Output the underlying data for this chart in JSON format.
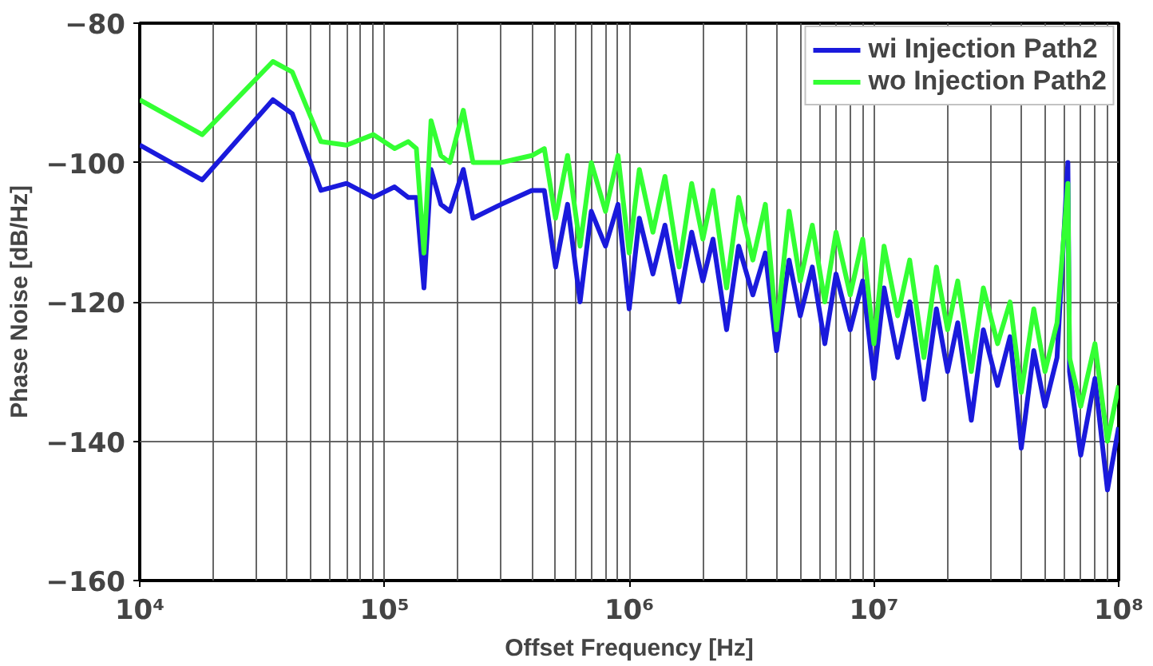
{
  "chart_data": {
    "type": "line",
    "xlabel": "Offset Frequency [Hz]",
    "ylabel": "Phase Noise [dB/Hz]",
    "log": "x",
    "grid": true,
    "legend": "top right",
    "xlim": [
      10000,
      100000000
    ],
    "ylim": [
      -160,
      -80
    ],
    "xticks": [
      {
        "value": 10000,
        "label": "10⁴"
      },
      {
        "value": 100000,
        "label": "10⁵"
      },
      {
        "value": 1000000,
        "label": "10⁶"
      },
      {
        "value": 10000000,
        "label": "10⁷"
      },
      {
        "value": 100000000,
        "label": "10⁸"
      }
    ],
    "yticks": [
      -160,
      -140,
      -120,
      -100,
      -80
    ],
    "series": [
      {
        "name": "wi Injection Path2",
        "color": "#1a1adc",
        "x": [
          10000,
          18000,
          35000,
          42000,
          55000,
          70000,
          90000,
          110000,
          125000,
          135000,
          145000,
          155000,
          170000,
          185000,
          210000,
          230000,
          300000,
          400000,
          450000,
          500000,
          560000,
          630000,
          700000,
          800000,
          900000,
          1000000,
          1100000,
          1250000,
          1400000,
          1600000,
          1800000,
          2000000,
          2200000,
          2500000,
          2800000,
          3200000,
          3600000,
          4000000,
          4500000,
          5000000,
          5600000,
          6300000,
          7000000,
          8000000,
          9000000,
          10000000,
          11000000,
          12500000,
          14000000,
          16000000,
          18000000,
          20000000,
          22000000,
          25000000,
          28000000,
          32000000,
          36000000,
          40000000,
          45000000,
          50000000,
          56000000,
          62000000,
          63000000,
          70000000,
          80000000,
          90000000,
          100000000
        ],
        "values": [
          -97.5,
          -102.5,
          -91,
          -93,
          -104,
          -103,
          -105,
          -103.5,
          -105,
          -105,
          -118,
          -101,
          -106,
          -107,
          -101,
          -108,
          -106,
          -104,
          -104,
          -115,
          -106,
          -120,
          -107,
          -112,
          -106,
          -121,
          -108,
          -116,
          -109,
          -120,
          -110,
          -117,
          -111,
          -124,
          -112,
          -119,
          -113,
          -127,
          -114,
          -122,
          -115,
          -126,
          -116,
          -124,
          -117,
          -131,
          -118,
          -128,
          -120,
          -134,
          -121,
          -130,
          -123,
          -137,
          -124,
          -132,
          -125,
          -141,
          -127,
          -135,
          -128,
          -100,
          -130,
          -142,
          -131,
          -147,
          -138
        ]
      },
      {
        "name": "wo Injection Path2",
        "color": "#33ff33",
        "x": [
          10000,
          18000,
          35000,
          42000,
          55000,
          70000,
          90000,
          110000,
          125000,
          135000,
          145000,
          155000,
          170000,
          185000,
          210000,
          230000,
          300000,
          400000,
          450000,
          500000,
          560000,
          630000,
          700000,
          800000,
          900000,
          1000000,
          1100000,
          1250000,
          1400000,
          1600000,
          1800000,
          2000000,
          2200000,
          2500000,
          2800000,
          3200000,
          3600000,
          4000000,
          4500000,
          5000000,
          5600000,
          6300000,
          7000000,
          8000000,
          9000000,
          10000000,
          11000000,
          12500000,
          14000000,
          16000000,
          18000000,
          20000000,
          22000000,
          25000000,
          28000000,
          32000000,
          36000000,
          40000000,
          45000000,
          50000000,
          56000000,
          62000000,
          63000000,
          70000000,
          80000000,
          90000000,
          100000000
        ],
        "values": [
          -91,
          -96,
          -85.5,
          -87,
          -97,
          -97.5,
          -96,
          -98,
          -97,
          -98,
          -113,
          -94,
          -99,
          -100,
          -92.5,
          -100,
          -100,
          -99,
          -98,
          -108,
          -99,
          -112,
          -100,
          -107,
          -99,
          -113,
          -101,
          -110,
          -102,
          -115,
          -103,
          -111,
          -104,
          -118,
          -105,
          -114,
          -106,
          -124,
          -107,
          -117,
          -109,
          -120,
          -110,
          -119,
          -111,
          -126,
          -112,
          -122,
          -114,
          -128,
          -115,
          -124,
          -117,
          -130,
          -118,
          -126,
          -120,
          -133,
          -121,
          -130,
          -123,
          -103,
          -128,
          -135,
          -126,
          -140,
          -132
        ]
      }
    ]
  }
}
